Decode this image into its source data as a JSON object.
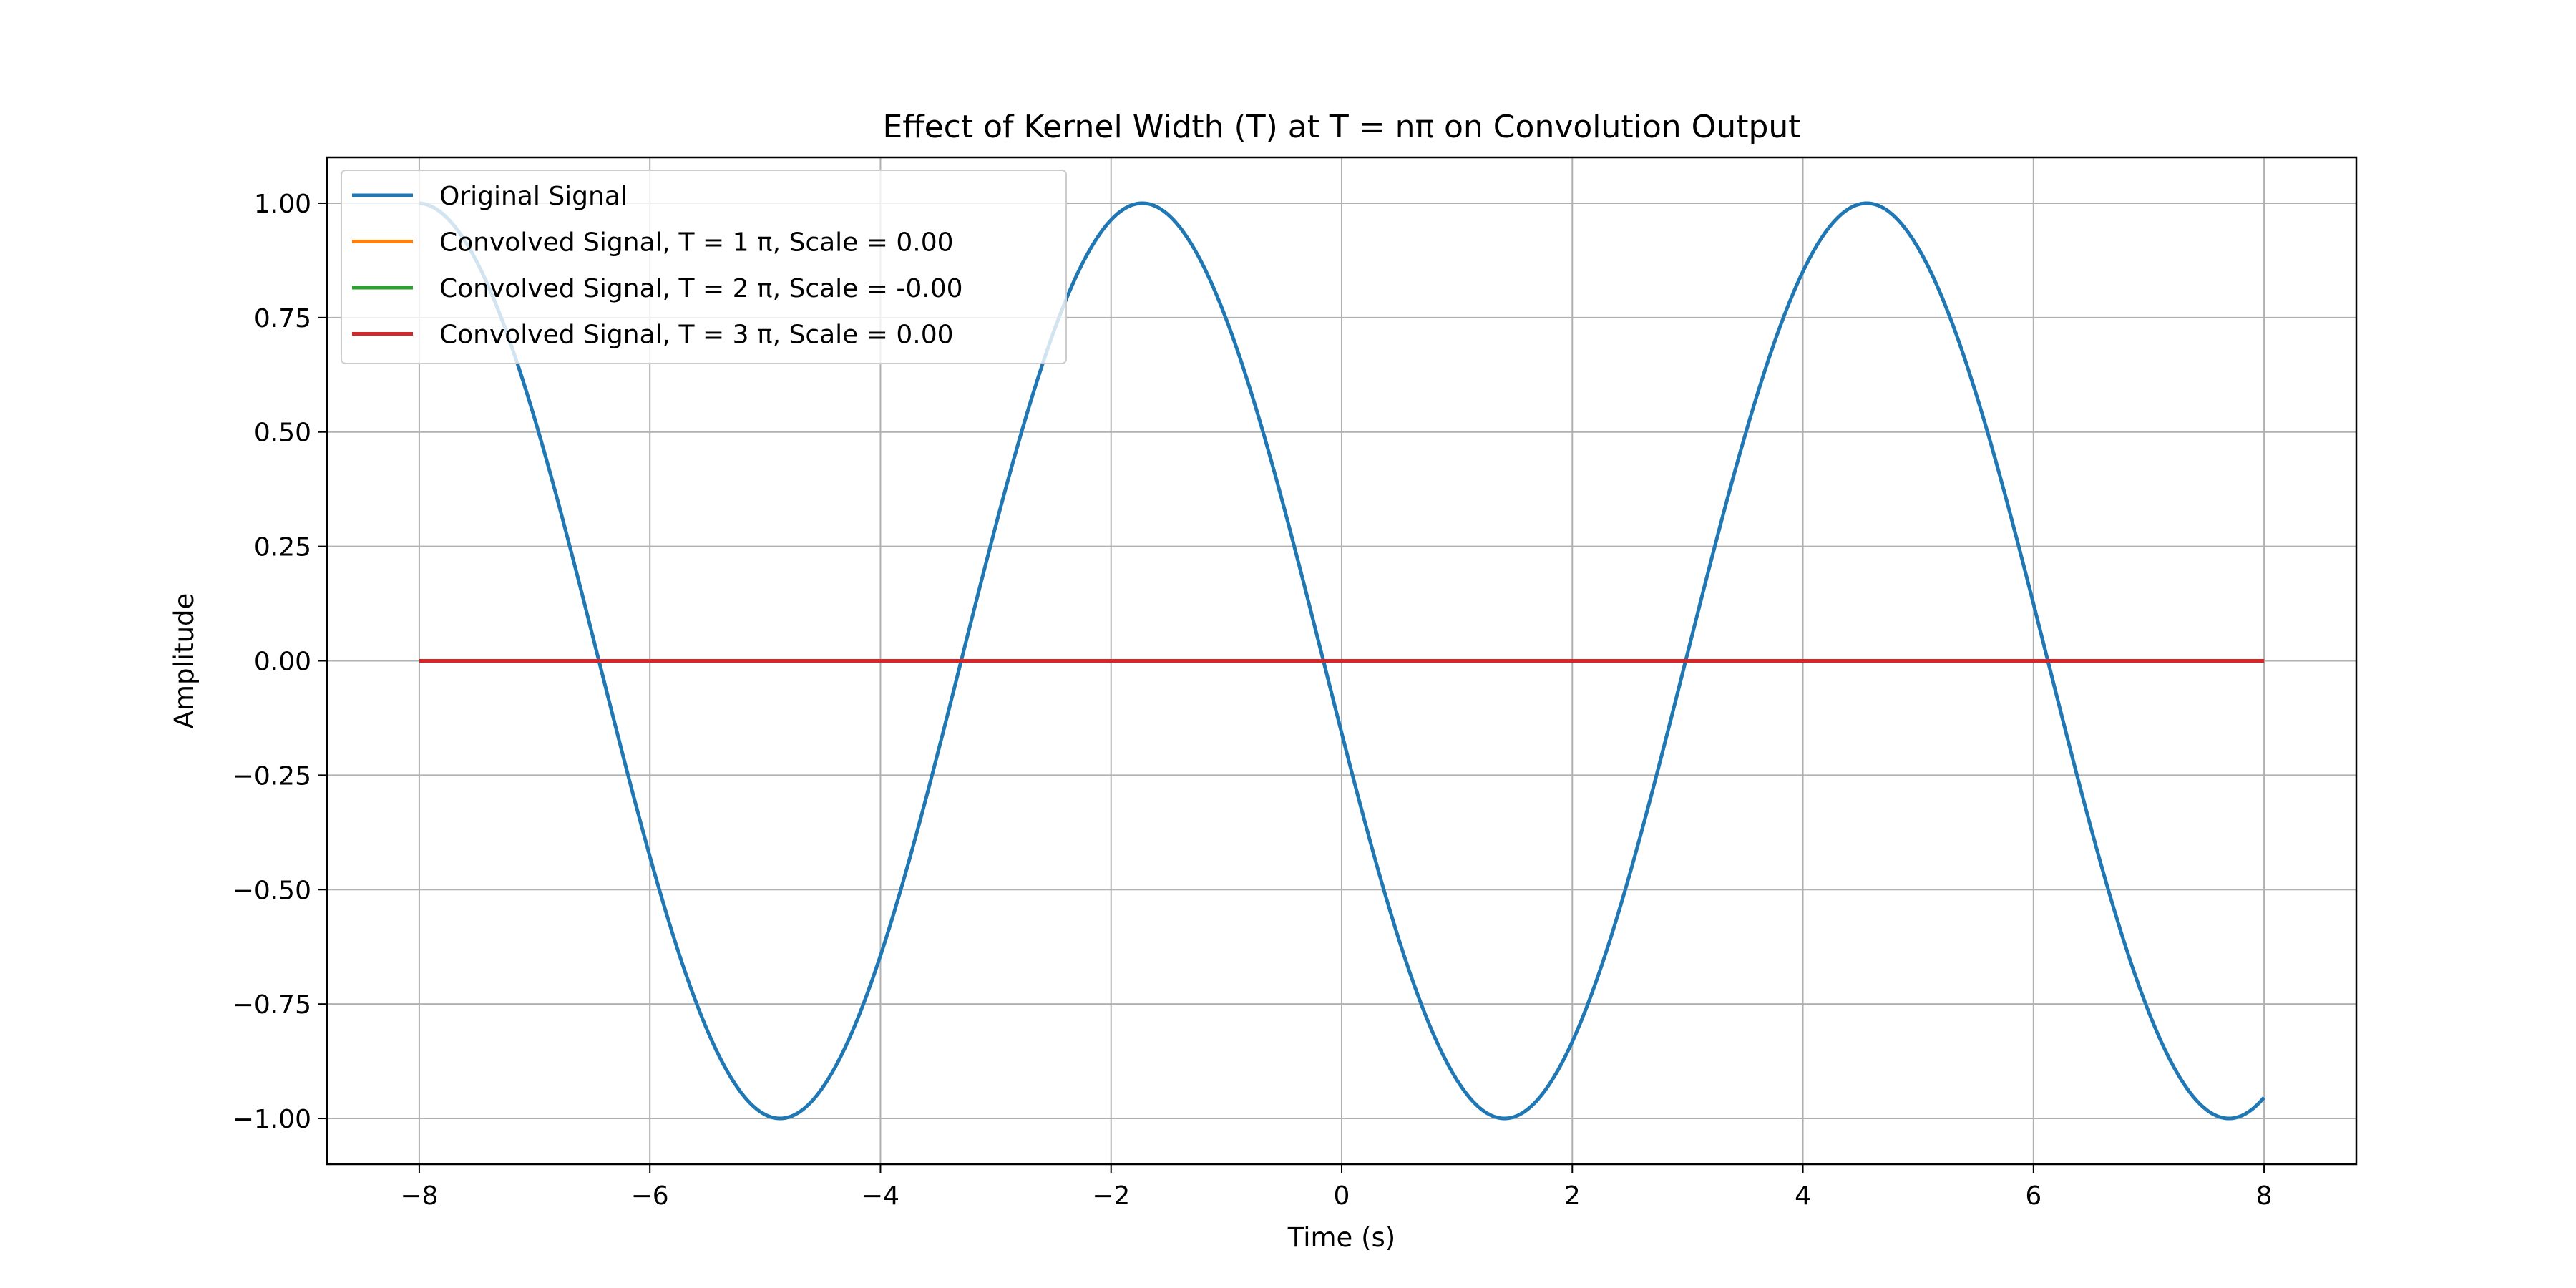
{
  "chart_data": {
    "type": "line",
    "title": "Effect of Kernel Width (T) at T = nπ on Convolution Output",
    "xlabel": "Time (s)",
    "ylabel": "Amplitude",
    "xlim": [
      -8.8,
      8.8
    ],
    "ylim": [
      -1.1,
      1.1
    ],
    "grid": true,
    "legend_position": "top-left",
    "xticks": [
      -8,
      -6,
      -4,
      -2,
      0,
      2,
      4,
      6,
      8
    ],
    "xtick_labels": [
      "−8",
      "−6",
      "−4",
      "−2",
      "0",
      "2",
      "4",
      "6",
      "8"
    ],
    "yticks": [
      1.0,
      0.75,
      0.5,
      0.25,
      0.0,
      -0.25,
      -0.5,
      -0.75,
      -1.0
    ],
    "ytick_labels": [
      "1.00",
      "0.75",
      "0.50",
      "0.25",
      "0.00",
      "−0.25",
      "−0.50",
      "−0.75",
      "−1.00"
    ],
    "series": [
      {
        "name": "Original Signal",
        "color": "#1f77b4",
        "function": "sin",
        "amplitude": 1.0,
        "period": 6.2832,
        "phase_shift": 3.3,
        "x_range": [
          -8,
          8
        ],
        "peaks_x": [
          -1.72,
          4.56
        ],
        "troughs_x": [
          -4.86,
          1.43,
          7.71
        ]
      },
      {
        "name": "Convolved Signal, T = 1 π, Scale = 0.00",
        "color": "#ff7f0e",
        "x": [
          -8,
          8
        ],
        "y": [
          0,
          0
        ]
      },
      {
        "name": "Convolved Signal, T = 2 π, Scale = -0.00",
        "color": "#2ca02c",
        "x": [
          -8,
          8
        ],
        "y": [
          0,
          0
        ]
      },
      {
        "name": "Convolved Signal, T = 3 π, Scale = 0.00",
        "color": "#d62728",
        "x": [
          -8,
          8
        ],
        "y": [
          0,
          0
        ]
      }
    ]
  }
}
